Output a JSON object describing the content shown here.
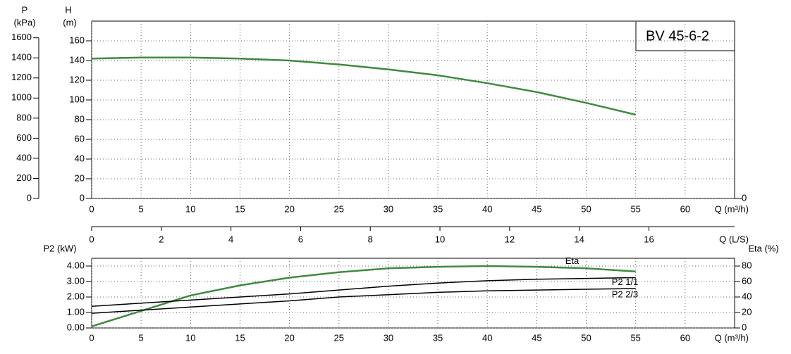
{
  "chart_data": [
    {
      "type": "line",
      "title": "BV 45-6-2",
      "y_label": "H",
      "y_unit": "(m)",
      "x_label": "Q (m³/h)",
      "x": [
        0,
        5,
        10,
        15,
        20,
        25,
        30,
        35,
        40,
        45,
        50,
        55
      ],
      "values": [
        142,
        143,
        143,
        142,
        140,
        136,
        131,
        125,
        117,
        108,
        97,
        85
      ],
      "color": "#3f8a3f",
      "xlim": [
        0,
        65
      ],
      "xticks": [
        0,
        5,
        10,
        15,
        20,
        25,
        30,
        35,
        40,
        45,
        50,
        55,
        60
      ],
      "ylim": [
        0,
        180
      ],
      "yticks": [
        0,
        20,
        40,
        60,
        80,
        100,
        120,
        140,
        160
      ],
      "p_axis": {
        "label": "P",
        "unit": "(kPa)",
        "lim": [
          0,
          1766
        ],
        "ticks": [
          0,
          200,
          400,
          600,
          800,
          1000,
          1200,
          1400,
          1600
        ]
      },
      "y2lim": [
        0,
        180
      ],
      "y2ticks": [
        0
      ],
      "grid": true
    },
    {
      "type": "axis",
      "x_label": "Q (L/S)",
      "xlim": [
        0,
        18.46
      ],
      "xticks": [
        0,
        2,
        4,
        6,
        8,
        10,
        12,
        14,
        16
      ]
    },
    {
      "type": "line",
      "y_label": "P2 (kW)",
      "y2_label": "Eta (%)",
      "x_label": "Q (m³/h)",
      "x": [
        0,
        5,
        10,
        15,
        20,
        25,
        30,
        35,
        40,
        45,
        50,
        55
      ],
      "series": [
        {
          "name": "Eta",
          "color": "#3f8a3f",
          "axis": "y2",
          "values": [
            2,
            22,
            42,
            55,
            65,
            72,
            77,
            79,
            80,
            79,
            77,
            73
          ]
        },
        {
          "name": "P2 1/1",
          "color": "#000000",
          "values": [
            1.4,
            1.6,
            1.8,
            2.0,
            2.2,
            2.45,
            2.7,
            2.9,
            3.05,
            3.15,
            3.2,
            3.25
          ]
        },
        {
          "name": "P2 2/3",
          "color": "#000000",
          "values": [
            0.95,
            1.15,
            1.35,
            1.55,
            1.75,
            2.0,
            2.15,
            2.3,
            2.4,
            2.45,
            2.5,
            2.55
          ]
        }
      ],
      "xlim": [
        0,
        65
      ],
      "xticks": [
        0,
        5,
        10,
        15,
        20,
        25,
        30,
        35,
        40,
        45,
        50,
        55,
        60
      ],
      "ylim": [
        0,
        4.5
      ],
      "yticks": [
        {
          "value": 0,
          "label": "0.00"
        },
        {
          "value": 1,
          "label": "1.00"
        },
        {
          "value": 2,
          "label": "2.00"
        },
        {
          "value": 3,
          "label": "3.00"
        },
        {
          "value": 4,
          "label": "4.00"
        }
      ],
      "y2lim": [
        0,
        90
      ],
      "y2ticks": [
        0,
        20,
        40,
        60,
        80
      ],
      "grid": true
    }
  ]
}
